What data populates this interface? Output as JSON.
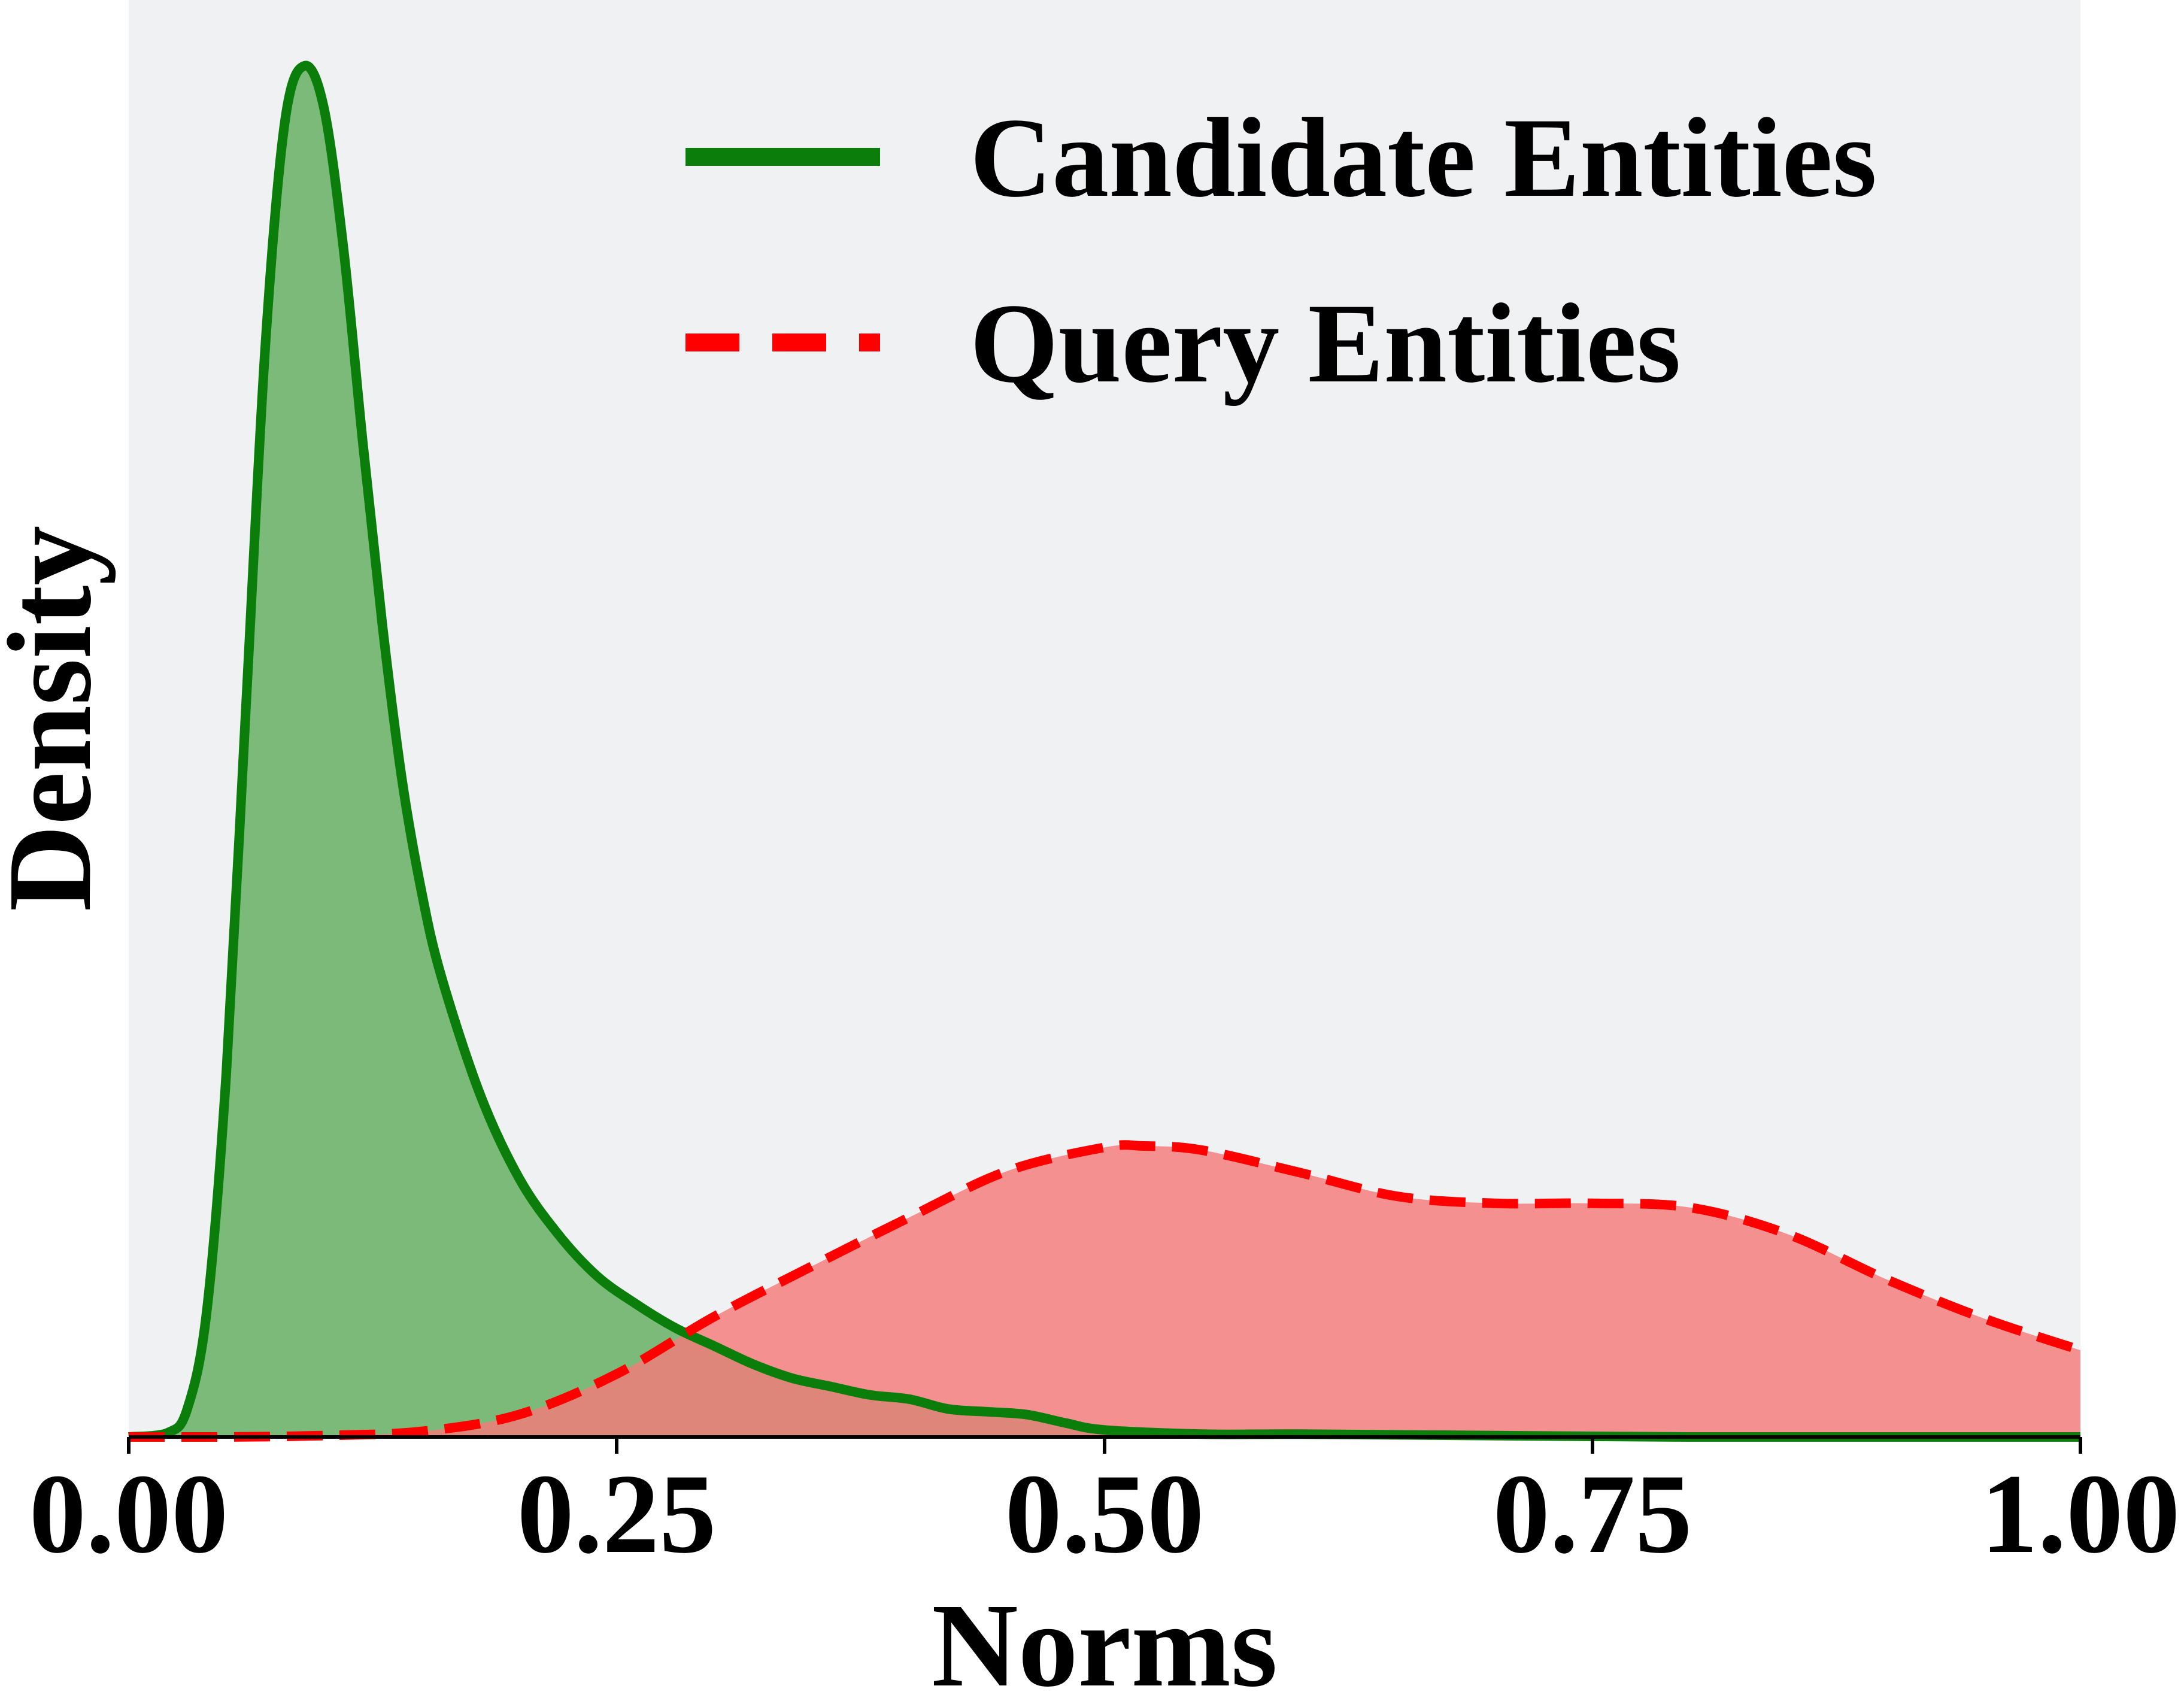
{
  "chart_data": {
    "type": "area",
    "title": "",
    "xlabel": "Norms",
    "ylabel": "Density",
    "xlim": [
      0,
      1
    ],
    "ylim": [
      0,
      9.8
    ],
    "grid": false,
    "legend_placement": "top-right",
    "background_color": "#f0f1f3",
    "xticks": [
      "0.00",
      "0.25",
      "0.50",
      "0.75",
      "1.00"
    ],
    "yticks": [],
    "series": [
      {
        "name": "Candidate Entities",
        "line_style": "solid",
        "color": "#0a7d0a",
        "fill_color": "#7cba7a",
        "x": [
          0.0,
          0.02,
          0.03,
          0.04,
          0.05,
          0.06,
          0.07,
          0.08,
          0.09,
          0.1,
          0.11,
          0.12,
          0.13,
          0.14,
          0.15,
          0.16,
          0.18,
          0.2,
          0.22,
          0.24,
          0.26,
          0.28,
          0.3,
          0.32,
          0.34,
          0.36,
          0.38,
          0.4,
          0.42,
          0.44,
          0.46,
          0.48,
          0.5,
          0.55,
          0.6,
          0.7,
          0.8,
          1.0
        ],
        "y": [
          0.0,
          0.03,
          0.2,
          0.9,
          2.6,
          5.2,
          7.8,
          9.4,
          9.8,
          9.5,
          8.5,
          7.1,
          5.8,
          4.7,
          3.9,
          3.3,
          2.45,
          1.85,
          1.45,
          1.15,
          0.95,
          0.78,
          0.65,
          0.52,
          0.42,
          0.36,
          0.3,
          0.27,
          0.2,
          0.18,
          0.16,
          0.1,
          0.05,
          0.02,
          0.02,
          0.01,
          0.0,
          0.0
        ]
      },
      {
        "name": "Query Entities",
        "line_style": "dashed",
        "color": "#ff0000",
        "fill_color": "#f47a7a",
        "x": [
          0.0,
          0.05,
          0.1,
          0.15,
          0.2,
          0.25,
          0.3,
          0.35,
          0.4,
          0.45,
          0.5,
          0.52,
          0.55,
          0.6,
          0.65,
          0.7,
          0.75,
          0.8,
          0.85,
          0.9,
          0.95,
          1.0
        ],
        "y": [
          0.0,
          0.0,
          0.01,
          0.04,
          0.16,
          0.45,
          0.86,
          1.22,
          1.57,
          1.9,
          2.07,
          2.08,
          2.05,
          1.89,
          1.72,
          1.67,
          1.67,
          1.64,
          1.45,
          1.13,
          0.85,
          0.62
        ]
      }
    ]
  }
}
